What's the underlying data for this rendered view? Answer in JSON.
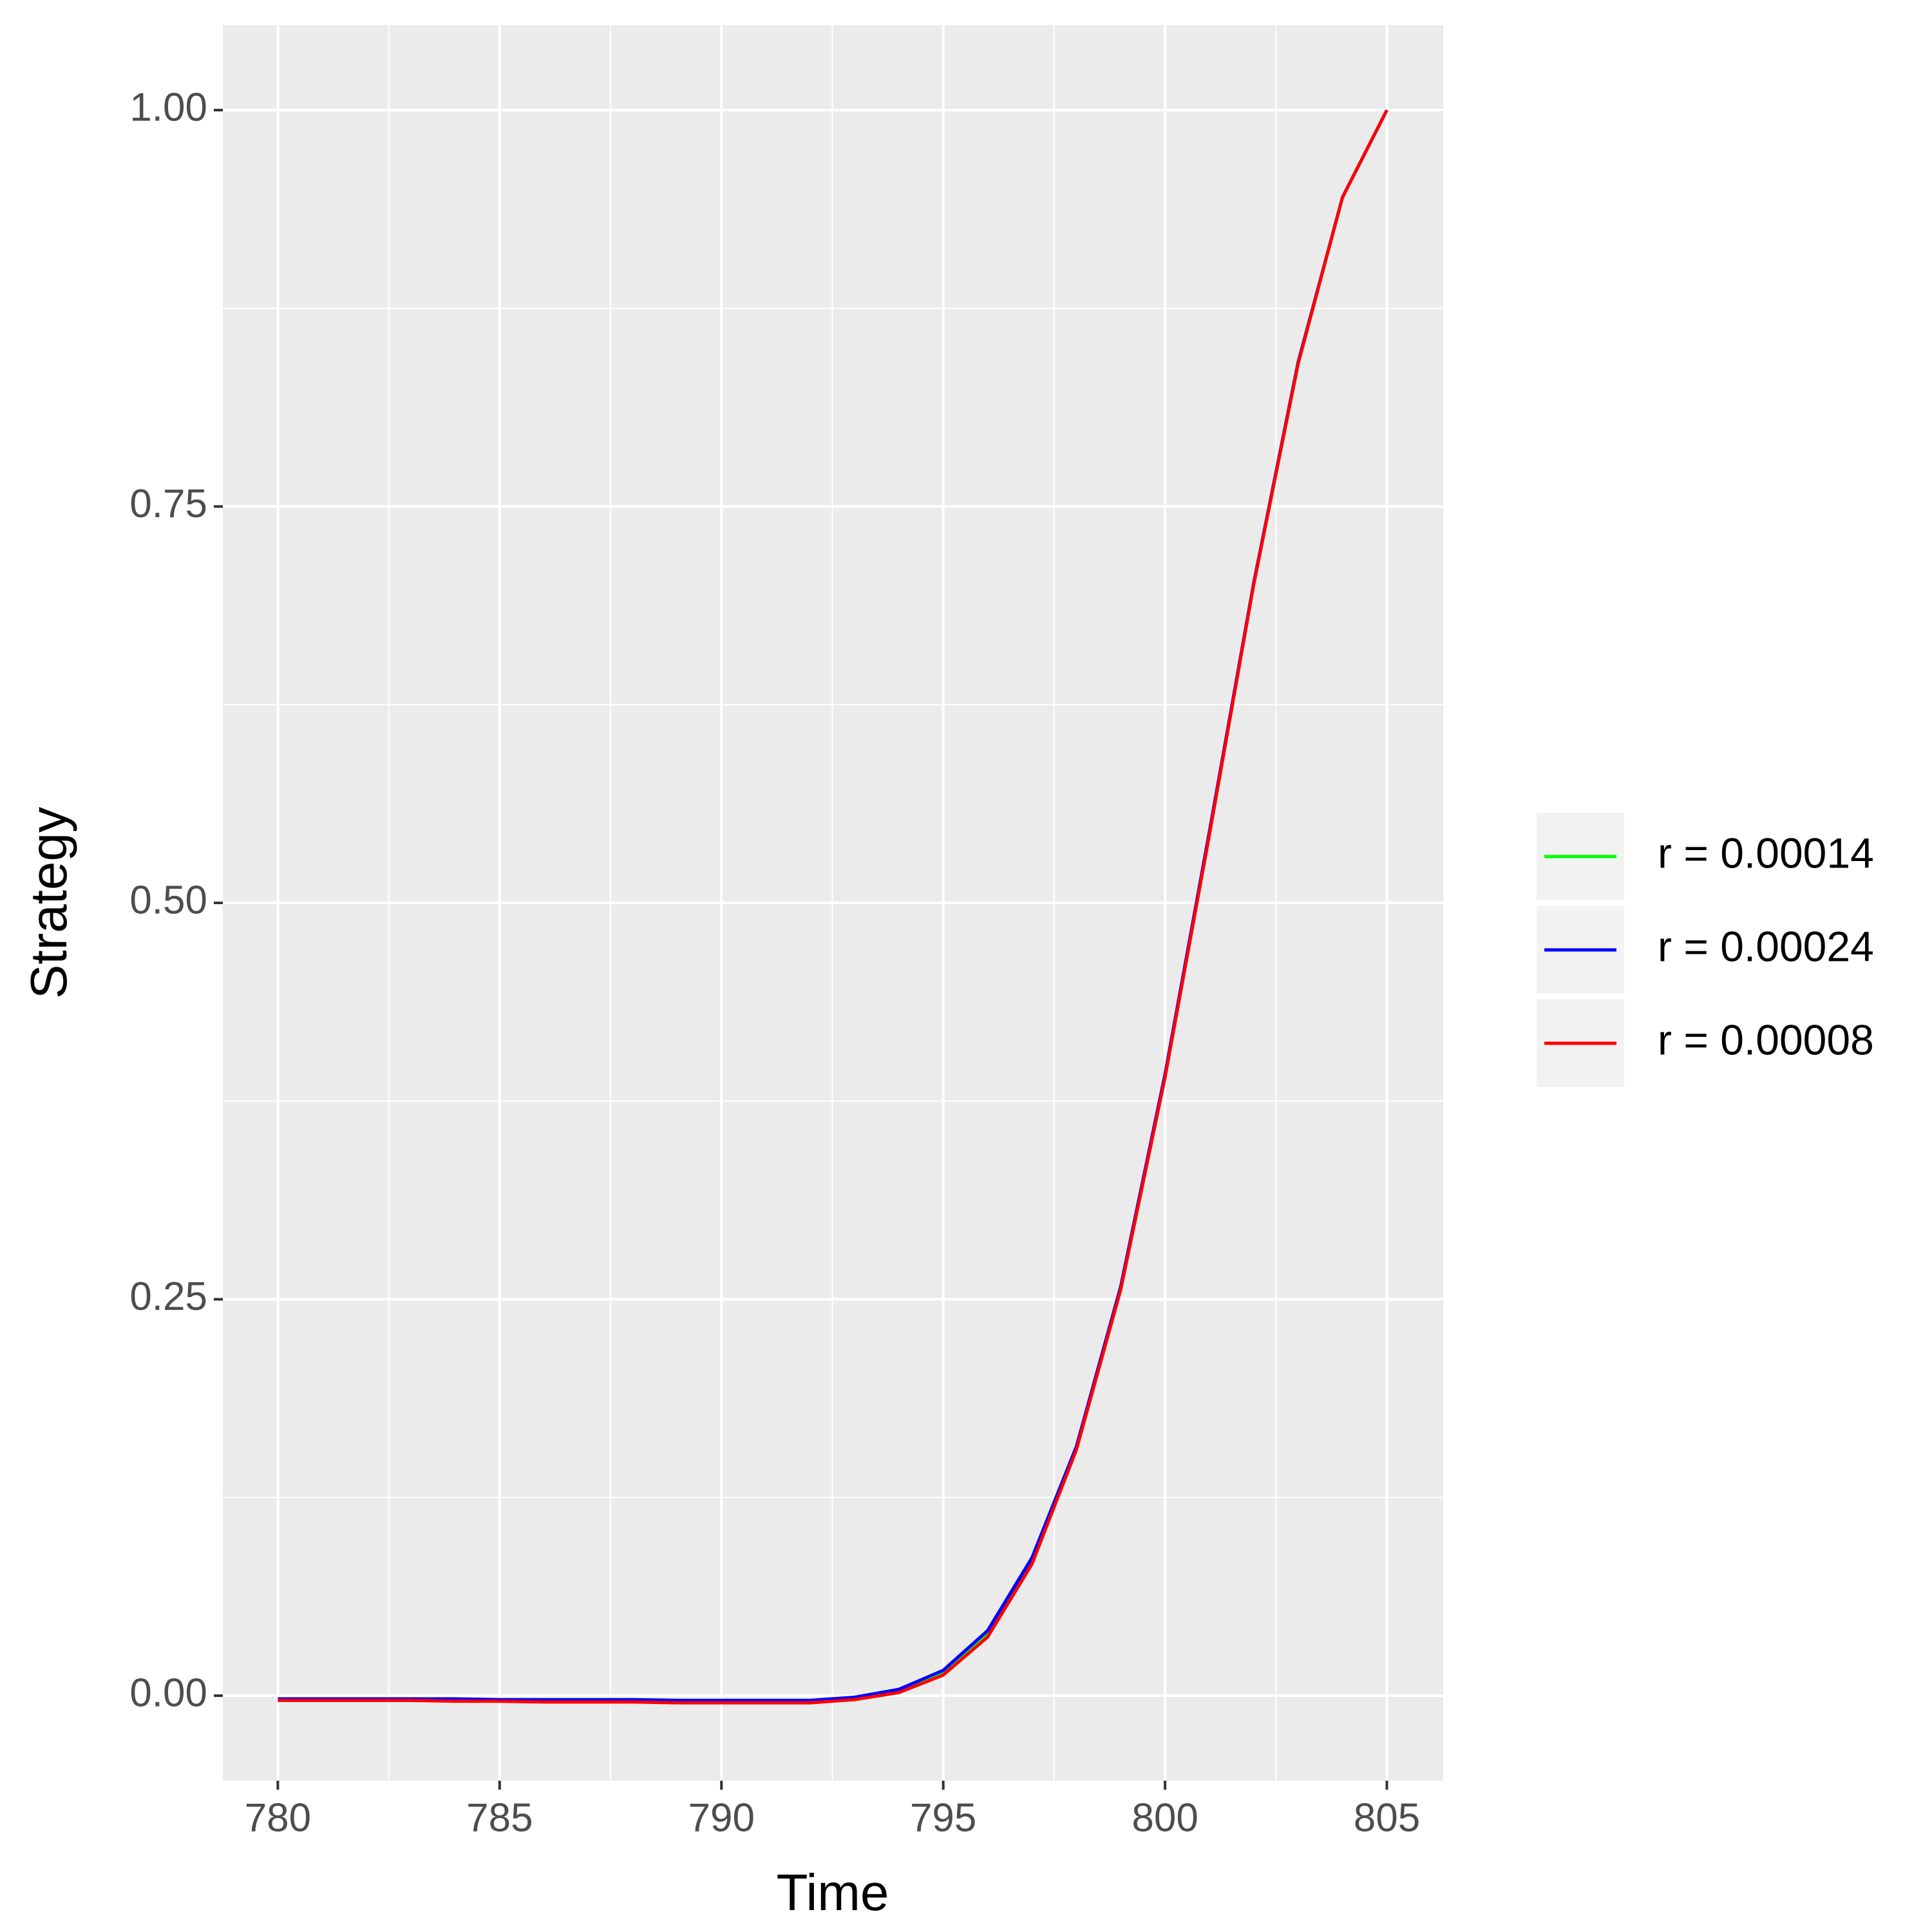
{
  "chart_data": {
    "type": "line",
    "x_label": "Time",
    "y_label": "Strategy",
    "x": [
      780,
      781,
      782,
      783,
      784,
      785,
      786,
      787,
      788,
      789,
      790,
      791,
      792,
      793,
      794,
      795,
      796,
      797,
      798,
      799,
      800,
      801,
      802,
      803,
      804,
      805
    ],
    "series": [
      {
        "name": "r = 0.00014",
        "color": "#00ff00",
        "values": [
          -0.0025,
          -0.0025,
          -0.0025,
          -0.0025,
          -0.003,
          -0.003,
          -0.003,
          -0.0035,
          -0.0035,
          -0.0035,
          -0.0035,
          -0.0035,
          -0.0035,
          -0.0015,
          0.0035,
          0.015,
          0.0395,
          0.0855,
          0.156,
          0.257,
          0.391,
          0.544,
          0.702,
          0.841,
          0.945,
          1.0
        ]
      },
      {
        "name": "r = 0.00024",
        "color": "#0000ff",
        "values": [
          -0.002,
          -0.002,
          -0.002,
          -0.002,
          -0.002,
          -0.0025,
          -0.0025,
          -0.0025,
          -0.0025,
          -0.003,
          -0.003,
          -0.003,
          -0.003,
          -0.001,
          0.004,
          0.016,
          0.041,
          0.087,
          0.157,
          0.258,
          0.392,
          0.545,
          0.702,
          0.841,
          0.945,
          1.0
        ]
      },
      {
        "name": "r = 0.00008",
        "color": "#ff0000",
        "values": [
          -0.003,
          -0.003,
          -0.003,
          -0.003,
          -0.0035,
          -0.0035,
          -0.004,
          -0.004,
          -0.004,
          -0.0045,
          -0.0045,
          -0.0045,
          -0.0045,
          -0.0025,
          0.002,
          0.013,
          0.037,
          0.083,
          0.155,
          0.256,
          0.39,
          0.543,
          0.701,
          0.84,
          0.945,
          1.0
        ]
      }
    ],
    "xlim": [
      778.76,
      806.27
    ],
    "ylim": [
      -0.0536,
      1.0536
    ],
    "xticks": [
      780,
      785,
      790,
      795,
      800,
      805
    ],
    "yticks": [
      {
        "value": 0,
        "label": "0.00"
      },
      {
        "value": 0.25,
        "label": "0.25"
      },
      {
        "value": 0.5,
        "label": "0.50"
      },
      {
        "value": 0.75,
        "label": "0.75"
      },
      {
        "value": 1,
        "label": "1.00"
      }
    ],
    "x_minor_ticks": [
      782.5,
      787.5,
      792.5,
      797.5,
      802.5
    ],
    "y_minor_ticks": [
      0.125,
      0.375,
      0.625,
      0.875
    ],
    "grid": true
  }
}
